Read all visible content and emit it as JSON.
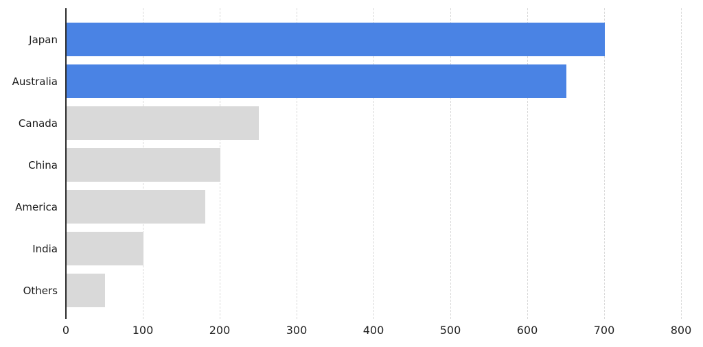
{
  "chart_data": {
    "type": "bar",
    "orientation": "horizontal",
    "title": "",
    "xlabel": "",
    "ylabel": "",
    "categories": [
      "Japan",
      "Australia",
      "Canada",
      "China",
      "America",
      "India",
      "Others"
    ],
    "values": [
      700,
      650,
      250,
      200,
      180,
      100,
      50
    ],
    "series": [
      {
        "name": "value",
        "values": [
          700,
          650,
          250,
          200,
          180,
          100,
          50
        ],
        "bar_colors": [
          "#4a83e4",
          "#4a83e4",
          "#d9d9d9",
          "#d9d9d9",
          "#d9d9d9",
          "#d9d9d9",
          "#d9d9d9"
        ]
      }
    ],
    "highlighted_categories": [
      "Japan",
      "Australia"
    ],
    "x_ticks": [
      0,
      100,
      200,
      300,
      400,
      500,
      600,
      700,
      800
    ],
    "xlim": [
      0,
      800
    ],
    "grid": "vertical-dashed",
    "legend": "none"
  },
  "colors": {
    "highlight_bar": "#4a83e4",
    "default_bar": "#d9d9d9",
    "axis_line": "#2b2b2b",
    "gridline": "#d9d9d9",
    "label_text": "#1a1a1a",
    "tick_text": "#222222",
    "background": "#ffffff"
  }
}
